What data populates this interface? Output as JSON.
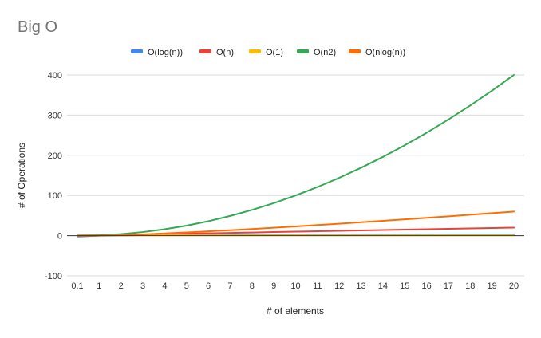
{
  "chart_data": {
    "type": "line",
    "title": "Big O",
    "xlabel": "# of elements",
    "ylabel": "# of Operations",
    "x": [
      0.1,
      1,
      2,
      3,
      4,
      5,
      6,
      7,
      8,
      9,
      10,
      11,
      12,
      13,
      14,
      15,
      16,
      17,
      18,
      19,
      20
    ],
    "x_tick_labels": [
      "0.1",
      "1",
      "2",
      "3",
      "4",
      "5",
      "6",
      "7",
      "8",
      "9",
      "10",
      "11",
      "12",
      "13",
      "14",
      "15",
      "16",
      "17",
      "18",
      "19",
      "20"
    ],
    "ylim": [
      -100,
      400
    ],
    "y_ticks": [
      -100,
      0,
      100,
      200,
      300,
      400
    ],
    "grid": true,
    "legend_position": "top",
    "series": [
      {
        "name": "O(log(n))",
        "color": "#4285F4",
        "values": [
          -2.3,
          0,
          0.69,
          1.1,
          1.39,
          1.61,
          1.79,
          1.95,
          2.08,
          2.2,
          2.3,
          2.4,
          2.48,
          2.56,
          2.64,
          2.71,
          2.77,
          2.83,
          2.89,
          2.94,
          3.0
        ]
      },
      {
        "name": "O(n)",
        "color": "#EA4335",
        "values": [
          0.1,
          1,
          2,
          3,
          4,
          5,
          6,
          7,
          8,
          9,
          10,
          11,
          12,
          13,
          14,
          15,
          16,
          17,
          18,
          19,
          20
        ]
      },
      {
        "name": "O(1)",
        "color": "#FBBC04",
        "values": [
          1,
          1,
          1,
          1,
          1,
          1,
          1,
          1,
          1,
          1,
          1,
          1,
          1,
          1,
          1,
          1,
          1,
          1,
          1,
          1,
          1
        ]
      },
      {
        "name": "O(n2)",
        "color": "#34A853",
        "values": [
          0.01,
          1,
          4,
          9,
          16,
          25,
          36,
          49,
          64,
          81,
          100,
          121,
          144,
          169,
          196,
          225,
          256,
          289,
          324,
          361,
          400
        ]
      },
      {
        "name": "O(nlog(n))",
        "color": "#FF6D01",
        "values": [
          -0.23,
          0,
          1.39,
          3.3,
          5.55,
          8.05,
          10.75,
          13.62,
          16.64,
          19.78,
          23.03,
          26.38,
          29.82,
          33.34,
          36.95,
          40.62,
          44.36,
          48.16,
          52.03,
          55.94,
          59.91
        ]
      }
    ]
  }
}
